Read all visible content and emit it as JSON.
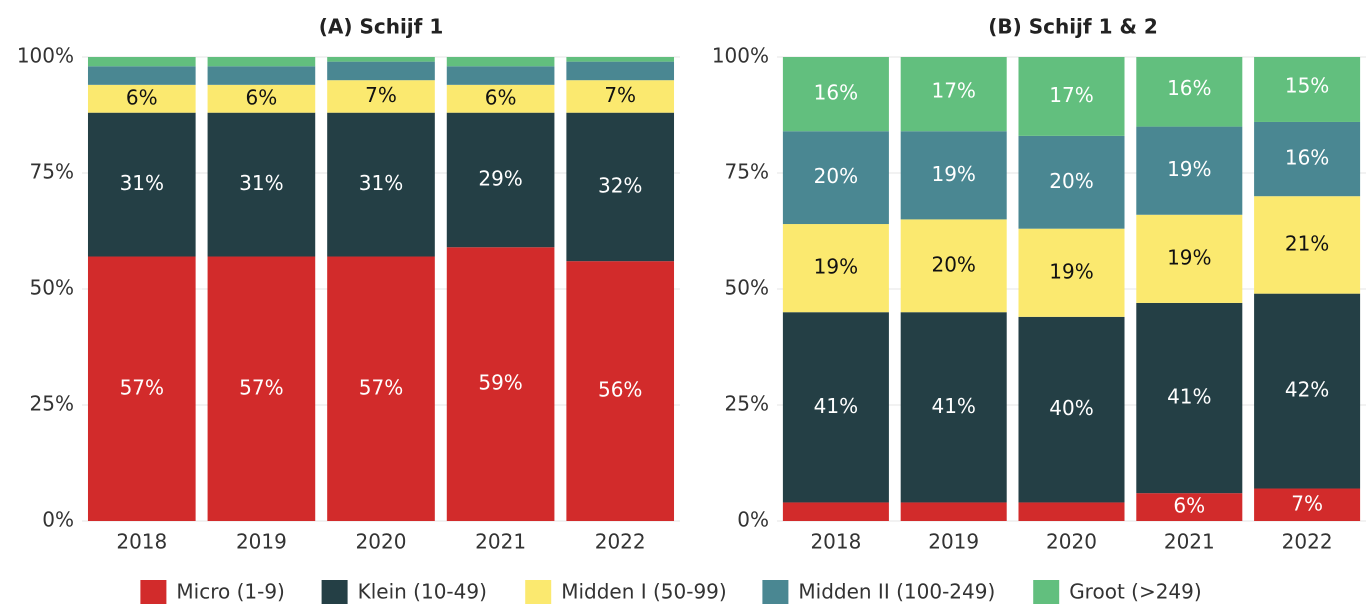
{
  "chart_data": [
    {
      "type": "stacked_bar",
      "title": "(A) Schijf 1",
      "categories": [
        "2018",
        "2019",
        "2020",
        "2021",
        "2022"
      ],
      "ylim": [
        0,
        100
      ],
      "yticks": [
        {
          "value": 0,
          "label": "0%"
        },
        {
          "value": 25,
          "label": "25%"
        },
        {
          "value": 50,
          "label": "50%"
        },
        {
          "value": 75,
          "label": "75%"
        },
        {
          "value": 100,
          "label": "100%"
        }
      ],
      "grid": true,
      "series": [
        {
          "name": "Micro (1-9)",
          "color": "#d22b2b",
          "values": [
            57,
            57,
            57,
            59,
            56
          ],
          "value_labels": [
            "57%",
            "57%",
            "57%",
            "59%",
            "56%"
          ]
        },
        {
          "name": "Klein (10-49)",
          "color": "#243f45",
          "values": [
            31,
            31,
            31,
            29,
            32
          ],
          "value_labels": [
            "31%",
            "31%",
            "31%",
            "29%",
            "32%"
          ]
        },
        {
          "name": "Midden I (50-99)",
          "color": "#fbe96f",
          "values": [
            6,
            6,
            7,
            6,
            7
          ],
          "value_labels": [
            "6%",
            "6%",
            "7%",
            "6%",
            "7%"
          ]
        },
        {
          "name": "Midden II (100-249)",
          "color": "#4a8792",
          "values": [
            4,
            4,
            4,
            4,
            4
          ],
          "value_labels": [
            null,
            null,
            null,
            null,
            null
          ]
        },
        {
          "name": "Groot (>249)",
          "color": "#62bf7e",
          "values": [
            2,
            2,
            1,
            2,
            1
          ],
          "value_labels": [
            null,
            null,
            null,
            null,
            null
          ]
        }
      ]
    },
    {
      "type": "stacked_bar",
      "title": "(B) Schijf 1 & 2",
      "categories": [
        "2018",
        "2019",
        "2020",
        "2021",
        "2022"
      ],
      "ylim": [
        0,
        100
      ],
      "yticks": [
        {
          "value": 0,
          "label": "0%"
        },
        {
          "value": 25,
          "label": "25%"
        },
        {
          "value": 50,
          "label": "50%"
        },
        {
          "value": 75,
          "label": "75%"
        },
        {
          "value": 100,
          "label": "100%"
        }
      ],
      "grid": true,
      "series": [
        {
          "name": "Micro (1-9)",
          "color": "#d22b2b",
          "values": [
            4,
            4,
            4,
            6,
            7
          ],
          "value_labels": [
            null,
            null,
            null,
            "6%",
            "7%"
          ]
        },
        {
          "name": "Klein (10-49)",
          "color": "#243f45",
          "values": [
            41,
            41,
            40,
            41,
            42
          ],
          "value_labels": [
            "41%",
            "41%",
            "40%",
            "41%",
            "42%"
          ]
        },
        {
          "name": "Midden I (50-99)",
          "color": "#fbe96f",
          "values": [
            19,
            20,
            19,
            19,
            21
          ],
          "value_labels": [
            "19%",
            "20%",
            "19%",
            "19%",
            "21%"
          ]
        },
        {
          "name": "Midden II (100-249)",
          "color": "#4a8792",
          "values": [
            20,
            19,
            20,
            19,
            16
          ],
          "value_labels": [
            "20%",
            "19%",
            "20%",
            "19%",
            "16%"
          ]
        },
        {
          "name": "Groot (>249)",
          "color": "#62bf7e",
          "values": [
            16,
            17,
            17,
            16,
            15
          ],
          "value_labels": [
            "16%",
            "17%",
            "17%",
            "16%",
            "15%"
          ]
        }
      ]
    }
  ]
}
